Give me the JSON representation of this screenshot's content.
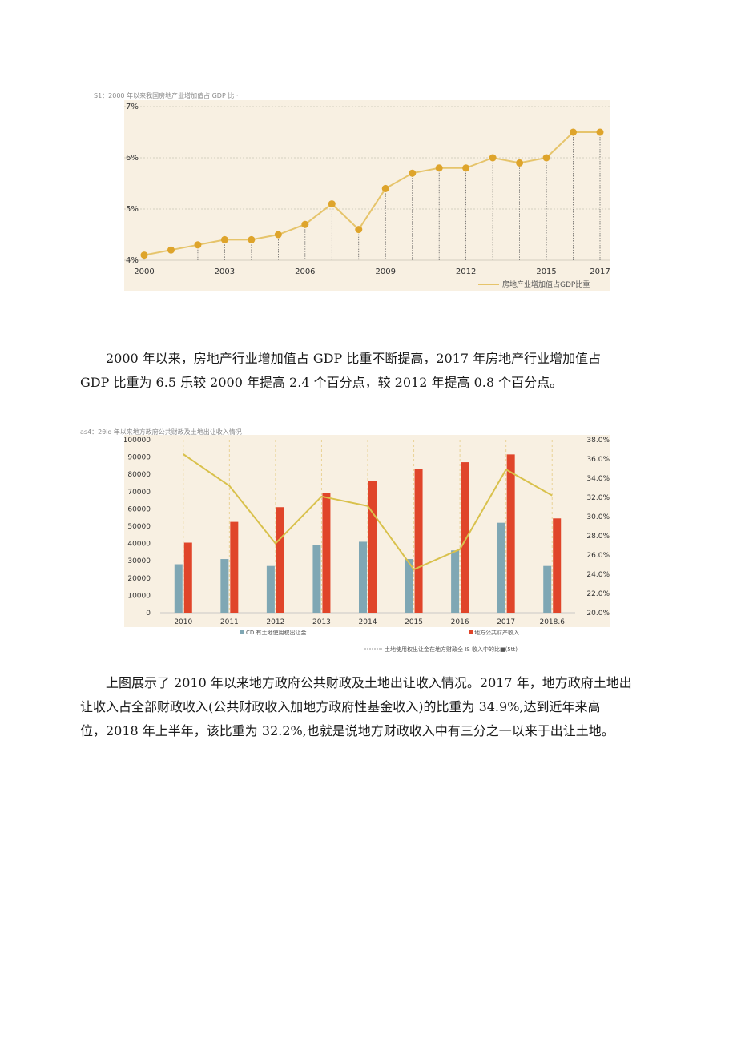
{
  "charts": [
    {
      "type": "line",
      "caption": "S1：2000 年以来我国房地产业增加值占 GDP 比 ·",
      "x": [
        2000,
        2001,
        2002,
        2003,
        2004,
        2005,
        2006,
        2007,
        2008,
        2009,
        2010,
        2011,
        2012,
        2013,
        2014,
        2015,
        2016,
        2017
      ],
      "values": [
        4.1,
        4.2,
        4.3,
        4.4,
        4.4,
        4.5,
        4.7,
        5.1,
        4.6,
        5.4,
        5.7,
        5.8,
        5.8,
        6.0,
        5.9,
        6.0,
        6.5,
        6.5
      ],
      "x_tick_labels": [
        "2000",
        "2003",
        "2006",
        "2009",
        "2012",
        "2015",
        "2017"
      ],
      "y_tick_labels": [
        "4%",
        "5%",
        "6%",
        "7%"
      ],
      "ylim": [
        4,
        7
      ],
      "legend": "房地产业增加值占GDP比重",
      "legend_position": "bottom-right",
      "colors": {
        "background": "#f8f0e2",
        "line": "#e6c46b",
        "point": "#dea42b",
        "grid": "#c9c3b5"
      }
    },
    {
      "type": "bar",
      "caption": "as4：2θio 年以来地方政府公共财政及土地出让收入情况",
      "categories": [
        "2010",
        "2011",
        "2012",
        "2013",
        "2014",
        "2015",
        "2016",
        "2017",
        "2018.6"
      ],
      "series": [
        {
          "name": "CD 有土地使用权出让金",
          "values": [
            28000,
            31000,
            27000,
            39000,
            41000,
            31000,
            36000,
            52000,
            27000
          ]
        },
        {
          "name": "地方公共财产收入",
          "values": [
            40500,
            52500,
            61000,
            69000,
            76000,
            83000,
            87000,
            91500,
            54500
          ]
        }
      ],
      "line_series": {
        "name": "土地使用权出让金在地方财政全 IS 收入中的比■(5tt)",
        "values": [
          36.5,
          33.2,
          27.2,
          32.1,
          31.1,
          24.5,
          26.6,
          34.9,
          32.2
        ]
      },
      "y_left_ticks": [
        "100000",
        "90000",
        "80000",
        "70000",
        "60000",
        "50000",
        "40000",
        "30000",
        "20000",
        "10000",
        "0"
      ],
      "y_right_ticks": [
        "38.0%",
        "36.0%",
        "34.0%",
        "32.0%",
        "30.0%",
        "28.0%",
        "26.0%",
        "24.0%",
        "22.0%",
        "20.0%"
      ],
      "ylim_left": [
        0,
        100000
      ],
      "ylim_right": [
        20,
        38
      ],
      "colors": {
        "background": "#f8f0e2",
        "bar1": "#7fa7b4",
        "bar2": "#e0452a",
        "line": "#d9c14c",
        "grid": "#e9d296"
      }
    }
  ],
  "paragraphs": [
    {
      "lines": [
        "2000 年以来，房地产行业增加值占 GDP 比重不断提高，2017 年房地产行业增加值占",
        "GDP 比重为 6.5 乐较 2000 年提高 2.4 个百分点，较 2012 年提高 0.8 个百分点。"
      ]
    },
    {
      "lines": [
        "上图展示了 2010 年以来地方政府公共财政及土地出让收入情况。2017 年，地方政府土地出",
        "让收入占全部财政收入(公共财政收入加地方政府性基金收入)的比重为 34.9%,达到近年来高",
        "位，2018 年上半年，该比重为 32.2%,也就是说地方财政收入中有三分之一以来于出让土地。"
      ]
    }
  ]
}
